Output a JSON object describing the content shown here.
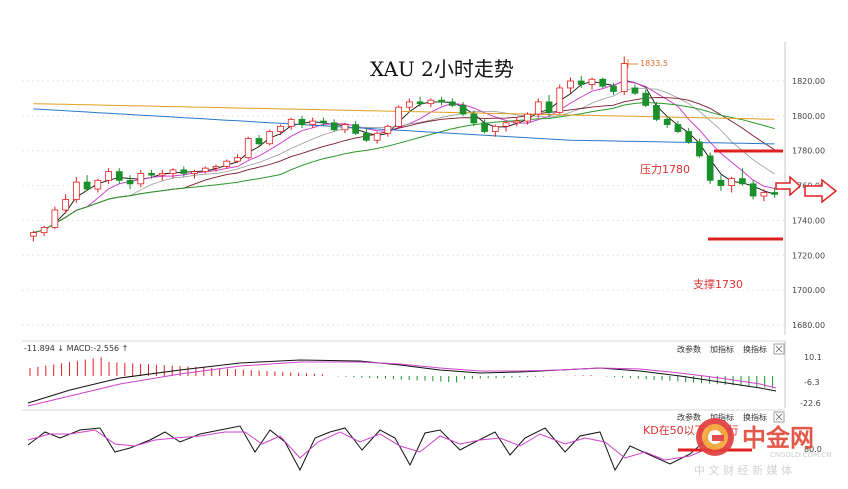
{
  "chart_data": {
    "type": "candlestick",
    "title": "XAU 2小时走势",
    "peak_label": "1833.5",
    "y_ticks": [
      "1820.00",
      "1800.00",
      "1780.00",
      "1760.00",
      "1740.00",
      "1720.00",
      "1700.00",
      "1680.00"
    ],
    "ylim": [
      1680,
      1840
    ],
    "grid": true,
    "ohlc": [
      [
        1731,
        1734,
        1728,
        1733
      ],
      [
        1733,
        1737,
        1731,
        1736
      ],
      [
        1736,
        1748,
        1735,
        1746
      ],
      [
        1746,
        1755,
        1744,
        1752
      ],
      [
        1752,
        1765,
        1750,
        1762
      ],
      [
        1762,
        1766,
        1757,
        1758
      ],
      [
        1758,
        1764,
        1756,
        1763
      ],
      [
        1763,
        1770,
        1761,
        1768
      ],
      [
        1768,
        1770,
        1761,
        1763
      ],
      [
        1763,
        1766,
        1758,
        1761
      ],
      [
        1761,
        1769,
        1759,
        1767
      ],
      [
        1767,
        1769,
        1764,
        1766
      ],
      [
        1766,
        1769,
        1763,
        1767
      ],
      [
        1767,
        1770,
        1764,
        1769
      ],
      [
        1769,
        1771,
        1765,
        1767
      ],
      [
        1767,
        1769,
        1764,
        1768
      ],
      [
        1768,
        1771,
        1767,
        1770
      ],
      [
        1770,
        1772,
        1768,
        1771
      ],
      [
        1771,
        1775,
        1770,
        1774
      ],
      [
        1774,
        1778,
        1773,
        1776
      ],
      [
        1776,
        1788,
        1775,
        1787
      ],
      [
        1787,
        1789,
        1783,
        1784
      ],
      [
        1784,
        1792,
        1783,
        1791
      ],
      [
        1791,
        1795,
        1789,
        1794
      ],
      [
        1794,
        1799,
        1792,
        1798
      ],
      [
        1798,
        1800,
        1793,
        1795
      ],
      [
        1795,
        1799,
        1793,
        1797
      ],
      [
        1797,
        1799,
        1794,
        1796
      ],
      [
        1796,
        1798,
        1791,
        1792
      ],
      [
        1792,
        1796,
        1790,
        1795
      ],
      [
        1795,
        1797,
        1789,
        1790
      ],
      [
        1790,
        1793,
        1785,
        1786
      ],
      [
        1786,
        1791,
        1784,
        1790
      ],
      [
        1790,
        1795,
        1788,
        1794
      ],
      [
        1794,
        1806,
        1793,
        1805
      ],
      [
        1805,
        1810,
        1803,
        1808
      ],
      [
        1808,
        1811,
        1805,
        1807
      ],
      [
        1807,
        1810,
        1805,
        1809
      ],
      [
        1809,
        1811,
        1806,
        1808
      ],
      [
        1808,
        1810,
        1805,
        1806
      ],
      [
        1806,
        1808,
        1800,
        1801
      ],
      [
        1801,
        1803,
        1794,
        1796
      ],
      [
        1796,
        1798,
        1790,
        1791
      ],
      [
        1791,
        1795,
        1788,
        1794
      ],
      [
        1794,
        1797,
        1791,
        1796
      ],
      [
        1796,
        1799,
        1794,
        1797
      ],
      [
        1797,
        1802,
        1795,
        1801
      ],
      [
        1801,
        1810,
        1799,
        1808
      ],
      [
        1808,
        1812,
        1800,
        1802
      ],
      [
        1802,
        1818,
        1801,
        1816
      ],
      [
        1816,
        1822,
        1813,
        1820
      ],
      [
        1820,
        1823,
        1816,
        1818
      ],
      [
        1818,
        1822,
        1815,
        1821
      ],
      [
        1821,
        1822,
        1816,
        1817
      ],
      [
        1817,
        1819,
        1812,
        1814
      ],
      [
        1814,
        1834,
        1812,
        1830
      ],
      [
        1816,
        1818,
        1812,
        1813
      ],
      [
        1813,
        1815,
        1805,
        1806
      ],
      [
        1806,
        1808,
        1797,
        1798
      ],
      [
        1798,
        1800,
        1793,
        1795
      ],
      [
        1795,
        1797,
        1790,
        1791
      ],
      [
        1791,
        1793,
        1784,
        1785
      ],
      [
        1785,
        1787,
        1776,
        1777
      ],
      [
        1777,
        1779,
        1761,
        1763
      ],
      [
        1763,
        1766,
        1757,
        1760
      ],
      [
        1760,
        1765,
        1756,
        1764
      ],
      [
        1764,
        1770,
        1760,
        1761
      ],
      [
        1761,
        1763,
        1752,
        1754
      ],
      [
        1754,
        1758,
        1751,
        1756
      ],
      [
        1756,
        1759,
        1753,
        1755
      ]
    ],
    "annotations": [
      {
        "text": "压力1780",
        "level": 1780
      },
      {
        "text": "支撑1730",
        "level": 1730
      }
    ],
    "macd_panel": {
      "header": "-11.894 ↓ MACD:-2.556 ↑",
      "y_ticks": [
        "10.1",
        "-6.3",
        "-22.6"
      ],
      "menu": [
        "改参数",
        "加指标",
        "换指标"
      ]
    },
    "kd_panel": {
      "y_ticks": [
        "80.0"
      ],
      "menu": [
        "改参数",
        "加指标",
        "换指标"
      ],
      "annotation": "KD在50以下方运行"
    }
  },
  "watermark": {
    "name": "中金网",
    "domain": "CNGOLD.COM.CN",
    "slogan": "中 文 财 经 新 媒 体"
  },
  "colors": {
    "up": "#e02020",
    "down": "#1a8f2a",
    "annotation": "#e03030",
    "ma_orange": "#e0a020",
    "ma_blue": "#2a78c8",
    "ma_green": "#2a9a2a",
    "ma_darkred": "#7a1a2a",
    "ma_magenta": "#d040d0",
    "ma_black": "#111111"
  }
}
